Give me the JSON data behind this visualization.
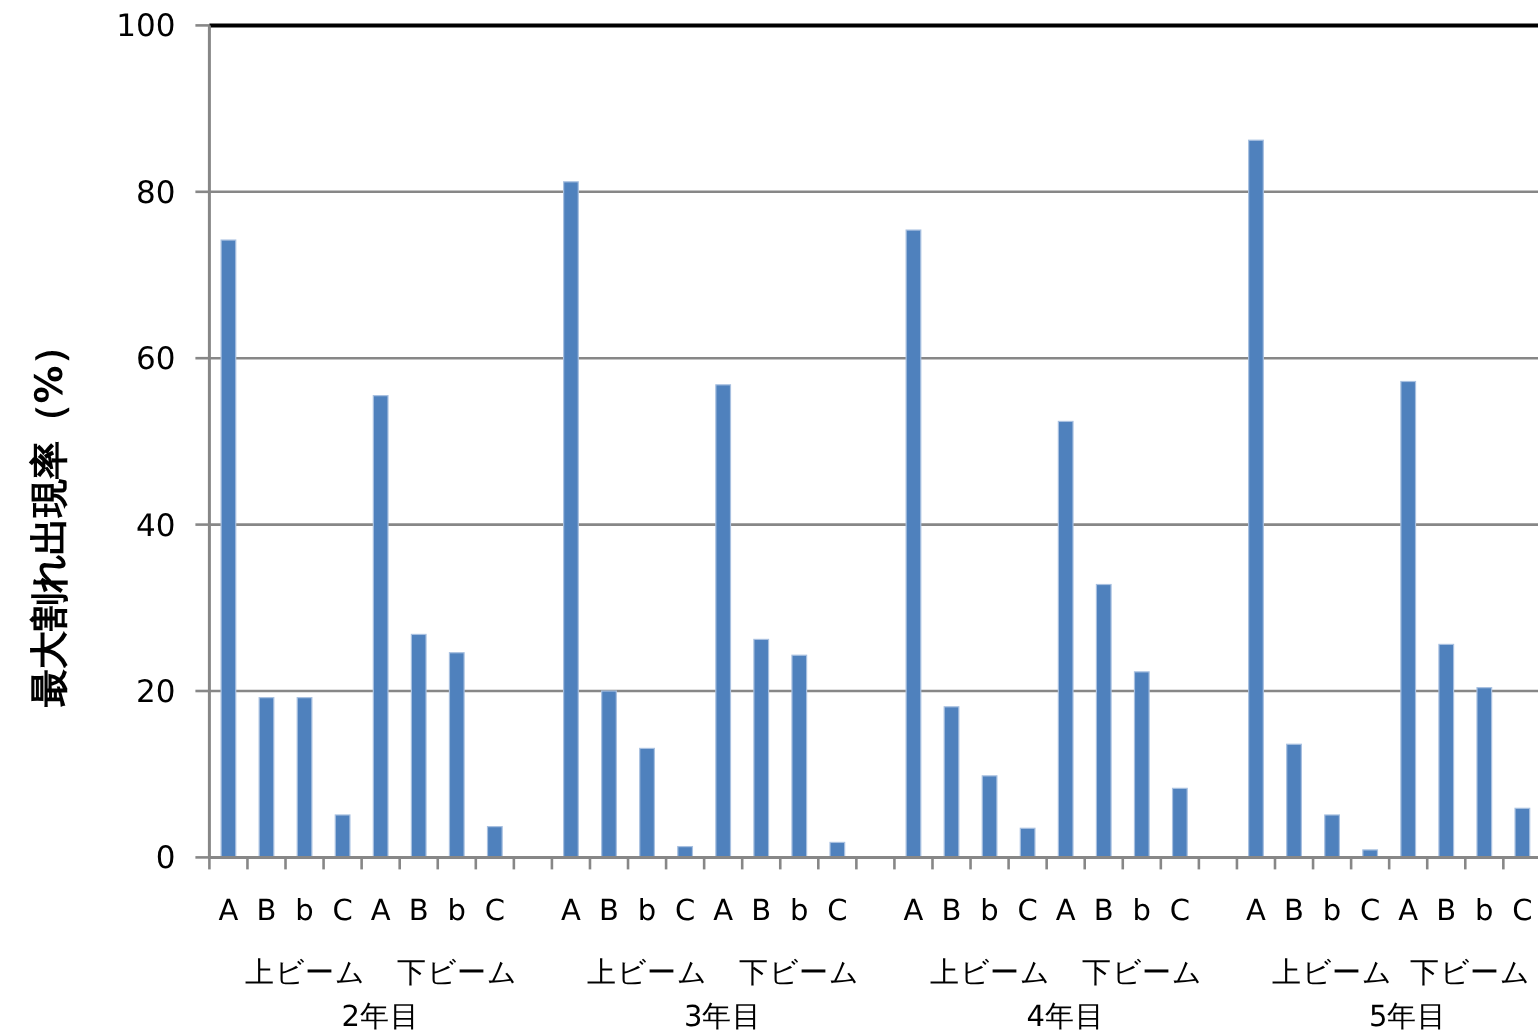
{
  "chart_data": {
    "type": "bar",
    "ylabel": "最大割れ出現率（%）",
    "categories": [
      "A",
      "B",
      "b",
      "C",
      "A",
      "B",
      "b",
      "C",
      null,
      "A",
      "B",
      "b",
      "C",
      "A",
      "B",
      "b",
      "C",
      null,
      "A",
      "B",
      "b",
      "C",
      "A",
      "B",
      "b",
      "C",
      null,
      "A",
      "B",
      "b",
      "C",
      "A",
      "B",
      "b",
      "C"
    ],
    "values": [
      74.2,
      19.2,
      19.2,
      5.1,
      55.5,
      26.8,
      24.6,
      3.7,
      null,
      81.2,
      20.0,
      13.1,
      1.3,
      56.8,
      26.2,
      24.3,
      1.8,
      null,
      75.4,
      18.1,
      9.8,
      3.5,
      52.4,
      32.8,
      22.3,
      8.3,
      null,
      86.2,
      13.6,
      5.1,
      0.9,
      57.2,
      25.6,
      20.4,
      5.9
    ],
    "color": "#4f81bd",
    "ylim": [
      0,
      100
    ],
    "yticks": [
      0,
      20,
      40,
      60,
      80,
      100
    ],
    "grid": "y",
    "annotations": [
      "上ビーム",
      "下ビーム",
      "上ビーム",
      "下ビーム",
      "上ビーム",
      "下ビーム",
      "上ビーム",
      "下ビーム",
      "2年目",
      "3年目",
      "4年目",
      "5年目"
    ]
  }
}
